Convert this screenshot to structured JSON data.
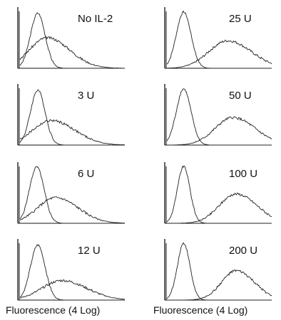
{
  "chart_data": {
    "type": "line",
    "layout": "two columns of four histogram panels",
    "x_axis_title": "Fluorescence (4 Log)",
    "panels": [
      {
        "label": "No IL-2",
        "control": {
          "center": 0.17,
          "width": 0.07,
          "height": 0.9
        },
        "stained": {
          "center": 0.26,
          "width": 0.17,
          "height": 0.5
        }
      },
      {
        "label": "3 U",
        "control": {
          "center": 0.17,
          "width": 0.07,
          "height": 0.9
        },
        "stained": {
          "center": 0.3,
          "width": 0.18,
          "height": 0.4
        }
      },
      {
        "label": "6 U",
        "control": {
          "center": 0.16,
          "width": 0.07,
          "height": 0.92
        },
        "stained": {
          "center": 0.34,
          "width": 0.17,
          "height": 0.42
        }
      },
      {
        "label": "12 U",
        "control": {
          "center": 0.17,
          "width": 0.07,
          "height": 0.9
        },
        "stained": {
          "center": 0.4,
          "width": 0.19,
          "height": 0.32
        }
      },
      {
        "label": "25 U",
        "control": {
          "center": 0.16,
          "width": 0.07,
          "height": 0.92
        },
        "stained": {
          "center": 0.58,
          "width": 0.18,
          "height": 0.45
        }
      },
      {
        "label": "50 U",
        "control": {
          "center": 0.16,
          "width": 0.07,
          "height": 0.92
        },
        "stained": {
          "center": 0.63,
          "width": 0.17,
          "height": 0.45
        }
      },
      {
        "label": "100 U",
        "control": {
          "center": 0.16,
          "width": 0.06,
          "height": 0.93
        },
        "stained": {
          "center": 0.66,
          "width": 0.16,
          "height": 0.48
        }
      },
      {
        "label": "200 U",
        "control": {
          "center": 0.16,
          "width": 0.06,
          "height": 0.93
        },
        "stained": {
          "center": 0.66,
          "width": 0.14,
          "height": 0.48
        }
      }
    ]
  }
}
